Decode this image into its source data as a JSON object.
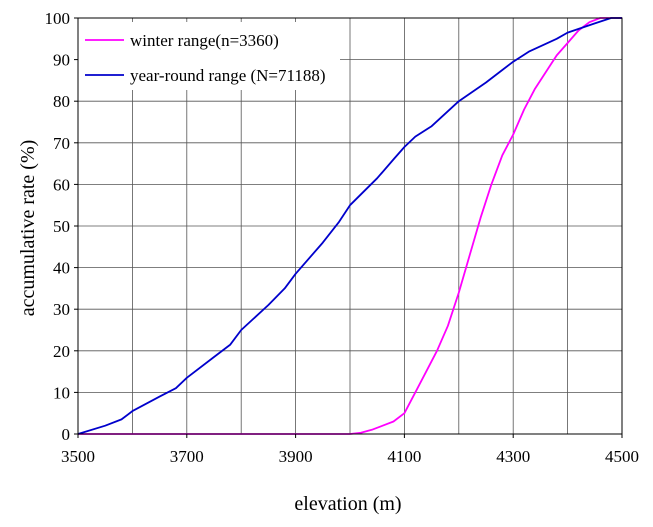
{
  "chart_data": {
    "type": "line",
    "title": "",
    "xlabel": "elevation (m)",
    "ylabel": "accumulative rate (%)",
    "xlim": [
      3500,
      4500
    ],
    "ylim": [
      0,
      100
    ],
    "x_ticks": [
      3500,
      3700,
      3900,
      4100,
      4300,
      4500
    ],
    "y_ticks": [
      0,
      10,
      20,
      30,
      40,
      50,
      60,
      70,
      80,
      90,
      100
    ],
    "grid": true,
    "legend_position": "top-left",
    "series": [
      {
        "name": "winter range(n=3360)",
        "color": "#ff00ff",
        "points": [
          [
            3500,
            0
          ],
          [
            4000,
            0
          ],
          [
            4020,
            0.3
          ],
          [
            4040,
            1
          ],
          [
            4060,
            2
          ],
          [
            4080,
            3
          ],
          [
            4100,
            5
          ],
          [
            4120,
            10
          ],
          [
            4140,
            15
          ],
          [
            4160,
            20
          ],
          [
            4180,
            26
          ],
          [
            4200,
            34
          ],
          [
            4220,
            43
          ],
          [
            4240,
            52
          ],
          [
            4260,
            60
          ],
          [
            4280,
            67
          ],
          [
            4300,
            72
          ],
          [
            4320,
            78
          ],
          [
            4340,
            83
          ],
          [
            4360,
            87
          ],
          [
            4380,
            91
          ],
          [
            4400,
            94
          ],
          [
            4420,
            97
          ],
          [
            4440,
            99
          ],
          [
            4460,
            100
          ],
          [
            4500,
            100
          ]
        ]
      },
      {
        "name": "year-round range (N=71188)",
        "color": "#0000cc",
        "points": [
          [
            3500,
            0
          ],
          [
            3550,
            2
          ],
          [
            3580,
            3.5
          ],
          [
            3600,
            5.5
          ],
          [
            3650,
            9
          ],
          [
            3680,
            11
          ],
          [
            3700,
            13.5
          ],
          [
            3750,
            18.5
          ],
          [
            3780,
            21.5
          ],
          [
            3800,
            25
          ],
          [
            3850,
            31
          ],
          [
            3880,
            35
          ],
          [
            3900,
            38.5
          ],
          [
            3950,
            46
          ],
          [
            3980,
            51
          ],
          [
            4000,
            55
          ],
          [
            4050,
            61.5
          ],
          [
            4080,
            66
          ],
          [
            4100,
            69
          ],
          [
            4120,
            71.5
          ],
          [
            4150,
            74
          ],
          [
            4200,
            80
          ],
          [
            4250,
            84.5
          ],
          [
            4280,
            87.5
          ],
          [
            4300,
            89.5
          ],
          [
            4330,
            92
          ],
          [
            4380,
            95
          ],
          [
            4400,
            96.5
          ],
          [
            4450,
            98.7
          ],
          [
            4480,
            100
          ],
          [
            4500,
            100
          ]
        ]
      }
    ]
  }
}
